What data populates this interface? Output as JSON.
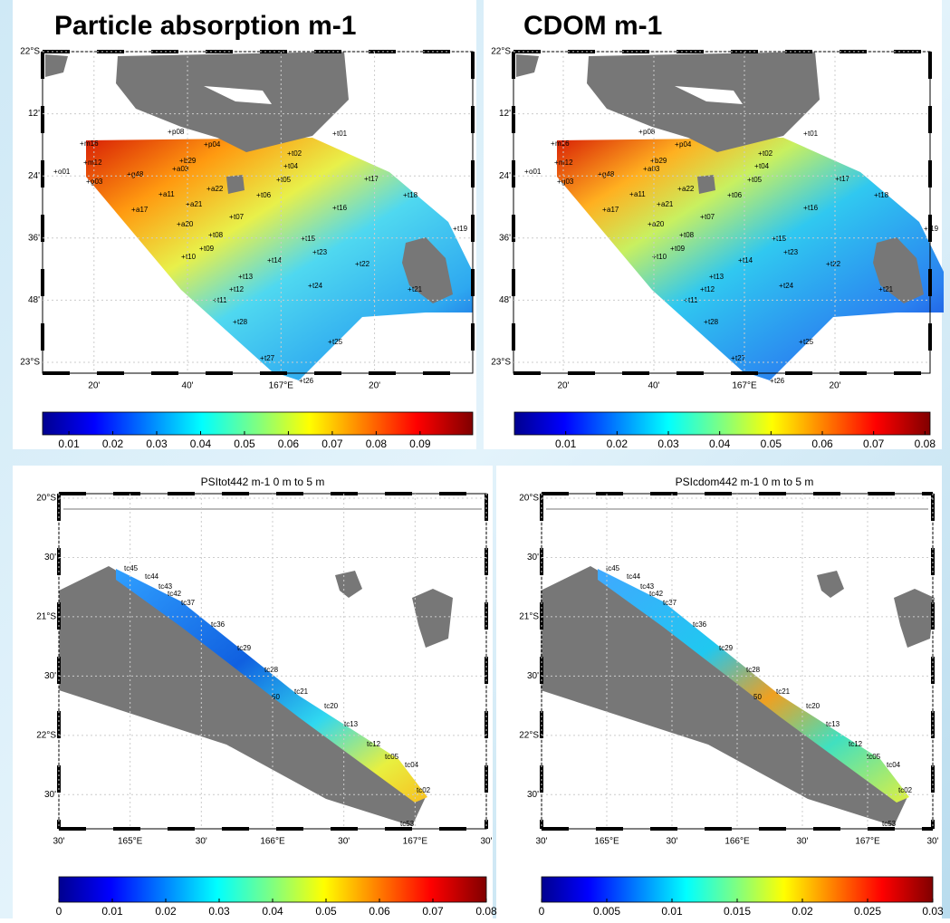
{
  "panels": [
    {
      "title": "Particle absorption m-1",
      "lat_labels": [
        "22°S",
        "12'",
        "24'",
        "36'",
        "48'",
        "23°S"
      ],
      "lon_labels": [
        "20'",
        "40'",
        "167°E",
        "20'"
      ],
      "colorbar": {
        "lim": [
          0.004,
          0.102
        ],
        "ticks": [
          0.01,
          0.02,
          0.03,
          0.04,
          0.05,
          0.06,
          0.07,
          0.08,
          0.09
        ]
      },
      "stations": [
        "t01",
        "t02",
        "t04",
        "t05",
        "t06",
        "t07",
        "t08",
        "t09",
        "t10",
        "t11",
        "t12",
        "t13",
        "t14",
        "t15",
        "t16",
        "t17",
        "t18",
        "t19",
        "t21",
        "t22",
        "t23",
        "t24",
        "t25",
        "t26",
        "t27",
        "t28",
        "a03",
        "a11",
        "a17",
        "a20",
        "a21",
        "a22",
        "b29",
        "g03",
        "g48",
        "m12",
        "m16",
        "p04",
        "p08",
        "o01"
      ]
    },
    {
      "title": "CDOM m-1",
      "lat_labels": [
        "22°S",
        "12'",
        "24'",
        "36'",
        "48'",
        "23°S"
      ],
      "lon_labels": [
        "20'",
        "40'",
        "167°E",
        "20'"
      ],
      "colorbar": {
        "lim": [
          0,
          0.081
        ],
        "ticks": [
          0.01,
          0.02,
          0.03,
          0.04,
          0.05,
          0.06,
          0.07,
          0.08
        ]
      },
      "stations": [
        "t01",
        "t02",
        "t04",
        "t05",
        "t06",
        "t07",
        "t08",
        "t09",
        "t10",
        "t11",
        "t12",
        "t13",
        "t14",
        "t15",
        "t16",
        "t17",
        "t18",
        "t19",
        "t21",
        "t22",
        "t23",
        "t24",
        "t25",
        "t26",
        "t27",
        "t28",
        "a03",
        "a11",
        "a17",
        "a20",
        "a21",
        "a22",
        "b29",
        "g03",
        "g48",
        "m12",
        "m16",
        "p04",
        "p08",
        "o01"
      ]
    },
    {
      "title": "PSItot442 m-1  0 m to 5 m",
      "lat_labels": [
        "20°S",
        "30'",
        "21°S",
        "30'",
        "22°S",
        "30'"
      ],
      "lon_labels": [
        "30'",
        "165°E",
        "30'",
        "166°E",
        "30'",
        "167°E",
        "30'"
      ],
      "colorbar": {
        "lim": [
          0,
          0.08
        ],
        "ticks": [
          0,
          0.01,
          0.02,
          0.03,
          0.04,
          0.05,
          0.06,
          0.07,
          0.08
        ]
      },
      "stations": [
        "tc45",
        "tc44",
        "tc43",
        "tc42",
        "tc37",
        "tc36",
        "tc29",
        "tc28",
        "tc21",
        "tc20",
        "tc13",
        "tc12",
        "tc05",
        "tc04",
        "tc02",
        "tc53",
        "50"
      ]
    },
    {
      "title": "PSIcdom442 m-1  0 m to 5 m",
      "lat_labels": [
        "20°S",
        "30'",
        "21°S",
        "30'",
        "22°S",
        "30'"
      ],
      "lon_labels": [
        "30'",
        "165°E",
        "30'",
        "166°E",
        "30'",
        "167°E",
        "30'"
      ],
      "colorbar": {
        "lim": [
          0,
          0.03
        ],
        "ticks": [
          0,
          0.005,
          0.01,
          0.015,
          0.02,
          0.025,
          0.03
        ]
      },
      "stations": [
        "tc45",
        "tc44",
        "tc43",
        "tc42",
        "tc37",
        "tc36",
        "tc29",
        "tc28",
        "tc21",
        "tc20",
        "tc13",
        "tc12",
        "tc05",
        "tc04",
        "tc02",
        "tc53",
        "50"
      ]
    }
  ]
}
